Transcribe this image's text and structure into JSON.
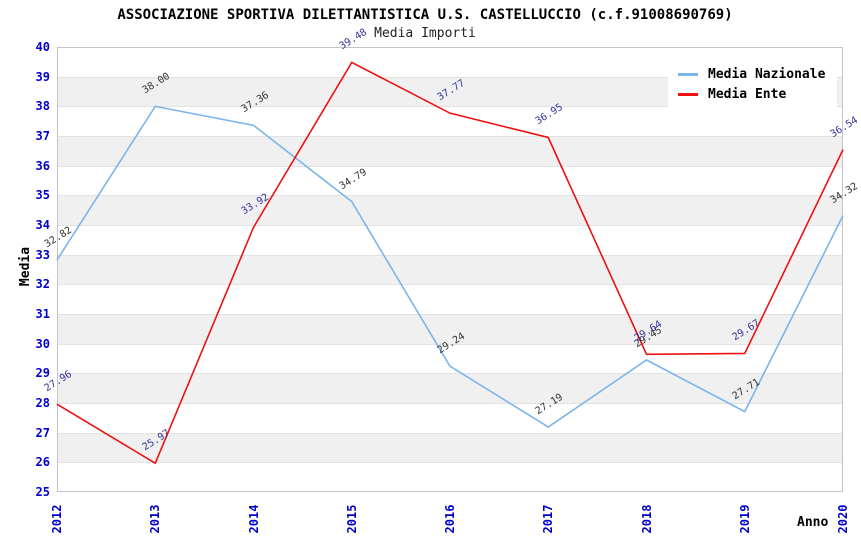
{
  "header": {
    "title": "ASSOCIAZIONE SPORTIVA DILETTANTISTICA U.S. CASTELLUCCIO (c.f.91008690769)",
    "subtitle": "Media Importi"
  },
  "legend": {
    "items": [
      {
        "label": "Media Nazionale",
        "color": "#7cb5ec"
      },
      {
        "label": "Media Ente",
        "color": "#ee1111"
      }
    ]
  },
  "axes": {
    "y_title": "Media",
    "x_title": "Anno",
    "tick_color": "#0000cc"
  },
  "chart_data": {
    "type": "line",
    "title": "ASSOCIAZIONE SPORTIVA DILETTANTISTICA U.S. CASTELLUCCIO (c.f.91008690769)",
    "subtitle": "Media Importi",
    "xlabel": "Anno",
    "ylabel": "Media",
    "categories": [
      "2012",
      "2013",
      "2014",
      "2015",
      "2016",
      "2017",
      "2018",
      "2019",
      "2020"
    ],
    "series": [
      {
        "name": "Media Nazionale",
        "color": "#7cb5ec",
        "label_color": "#333333",
        "values": [
          32.82,
          38.0,
          37.36,
          34.79,
          29.24,
          27.19,
          29.45,
          27.71,
          34.32
        ]
      },
      {
        "name": "Media Ente",
        "color": "#ee1111",
        "label_color": "#333399",
        "values": [
          27.96,
          25.97,
          33.92,
          39.48,
          37.77,
          36.95,
          29.64,
          29.67,
          36.54
        ]
      }
    ],
    "ylim": [
      25,
      40
    ],
    "ytick_step": 1,
    "grid": true,
    "alternating_bands": true,
    "band_color": "#f0f0f0",
    "legend_position": "top-right"
  }
}
